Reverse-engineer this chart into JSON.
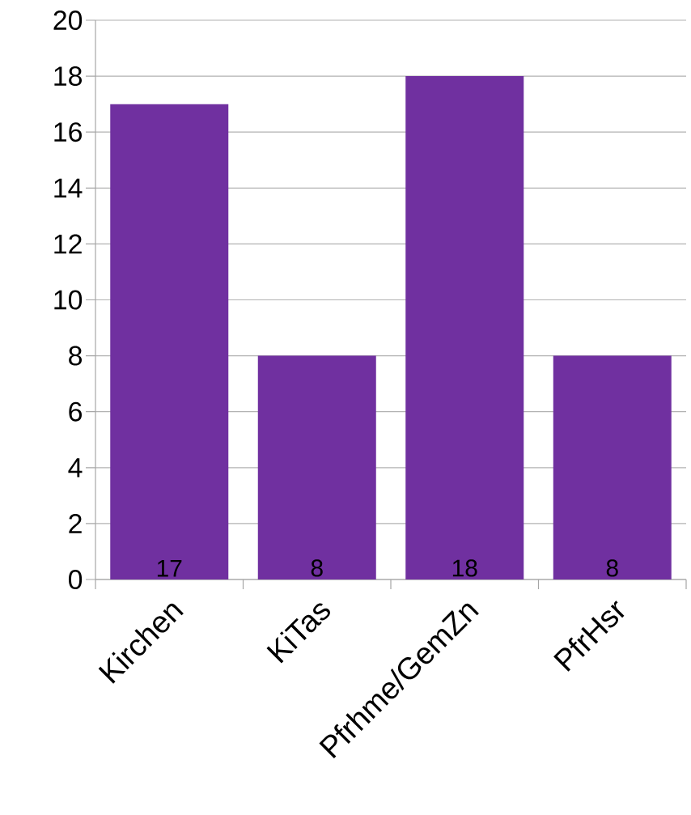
{
  "chart_data": {
    "type": "bar",
    "categories": [
      "Kirchen",
      "KiTas",
      "Pfrhme/GemZn",
      "PfrHsr"
    ],
    "values": [
      17,
      8,
      18,
      8
    ],
    "color": "#7030a0",
    "ylim": [
      0,
      20
    ],
    "yticks": [
      0,
      2,
      4,
      6,
      8,
      10,
      12,
      14,
      16,
      18,
      20
    ],
    "grid": "y",
    "data_labels": true
  }
}
